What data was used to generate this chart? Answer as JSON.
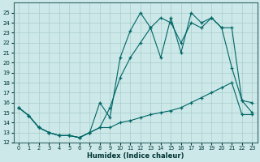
{
  "xlabel": "Humidex (Indice chaleur)",
  "bg_color": "#cce8e8",
  "grid_color": "#aacccc",
  "line_color": "#006666",
  "xlim": [
    -0.5,
    23.5
  ],
  "ylim": [
    12,
    26
  ],
  "yticks": [
    12,
    13,
    14,
    15,
    16,
    17,
    18,
    19,
    20,
    21,
    22,
    23,
    24,
    25
  ],
  "xticks": [
    0,
    1,
    2,
    3,
    4,
    5,
    6,
    7,
    8,
    9,
    10,
    11,
    12,
    13,
    14,
    15,
    16,
    17,
    18,
    19,
    20,
    21,
    22,
    23
  ],
  "line1_x": [
    0,
    1,
    2,
    3,
    4,
    5,
    6,
    7,
    8,
    9,
    10,
    11,
    12,
    13,
    14,
    15,
    16,
    17,
    18,
    19,
    20,
    21,
    22,
    23
  ],
  "line1_y": [
    15.5,
    14.7,
    13.5,
    13.0,
    12.7,
    12.7,
    12.5,
    13.0,
    13.5,
    13.5,
    14.0,
    14.2,
    14.5,
    14.8,
    15.0,
    15.2,
    15.5,
    16.0,
    16.5,
    17.0,
    17.5,
    18.0,
    14.8,
    14.8
  ],
  "line2_x": [
    0,
    1,
    2,
    3,
    4,
    5,
    6,
    7,
    8,
    9,
    10,
    11,
    12,
    13,
    14,
    15,
    16,
    17,
    18,
    19,
    20,
    21,
    22,
    23
  ],
  "line2_y": [
    15.5,
    14.7,
    13.5,
    13.0,
    12.7,
    12.7,
    12.5,
    13.0,
    13.5,
    15.5,
    18.5,
    20.5,
    22.0,
    23.5,
    24.5,
    24.0,
    22.0,
    24.0,
    23.5,
    24.5,
    23.5,
    23.5,
    16.2,
    15.0
  ],
  "line3_x": [
    0,
    1,
    2,
    3,
    4,
    5,
    6,
    7,
    8,
    9,
    10,
    11,
    12,
    13,
    14,
    15,
    16,
    17,
    18,
    19,
    20,
    21,
    22,
    23
  ],
  "line3_y": [
    15.5,
    14.7,
    13.5,
    13.0,
    12.7,
    12.7,
    12.5,
    13.0,
    16.0,
    14.5,
    20.5,
    23.2,
    25.0,
    23.5,
    20.5,
    24.5,
    21.0,
    25.0,
    24.0,
    24.5,
    23.5,
    19.5,
    16.2,
    16.0
  ]
}
